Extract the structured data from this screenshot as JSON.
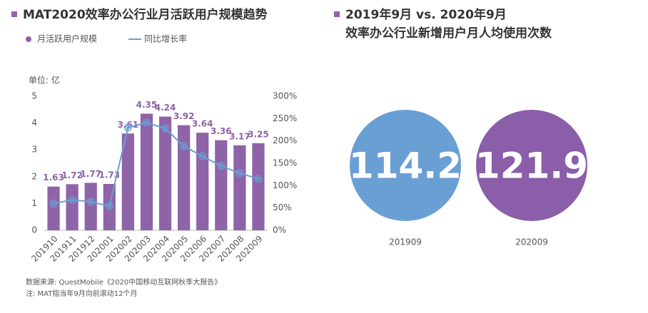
{
  "chart_data": [
    {
      "type": "bar-line",
      "title": "MAT2020效率办公行业月活跃用户规模趋势",
      "unit_label": "单位: 亿",
      "categories": [
        "201910",
        "201911",
        "201912",
        "202001",
        "202002",
        "202003",
        "202004",
        "202005",
        "202006",
        "202007",
        "202008",
        "202009"
      ],
      "series": [
        {
          "name": "月活跃用户规模",
          "type": "bar",
          "color": "#8e63a8",
          "values": [
            1.63,
            1.72,
            1.77,
            1.73,
            3.61,
            4.35,
            4.24,
            3.92,
            3.64,
            3.36,
            3.17,
            3.25
          ]
        },
        {
          "name": "同比增长率",
          "type": "line",
          "axis": "y2",
          "color": "#6b9fd4",
          "values": [
            60,
            68,
            64,
            54,
            230,
            241,
            228,
            188,
            166,
            144,
            128,
            115
          ]
        }
      ],
      "ylim": [
        0,
        5
      ],
      "yticks": [
        0,
        1,
        2,
        3,
        4,
        5
      ],
      "y2lim": [
        0,
        300
      ],
      "y2ticks": [
        {
          "value": 0,
          "label": "0%"
        },
        {
          "value": 50,
          "label": "50%"
        },
        {
          "value": 100,
          "label": "100%"
        },
        {
          "value": 150,
          "label": "150%"
        },
        {
          "value": 200,
          "label": "200%"
        },
        {
          "value": 250,
          "label": "250%"
        },
        {
          "value": 300,
          "label": "300%"
        }
      ],
      "notes": [
        "数据来源: QuestMobile《2020中国移动互联网秋季大报告》",
        "注: MAT指当年9月向前滚动12个月"
      ]
    },
    {
      "type": "circles",
      "title": "2019年9月 vs. 2020年9月",
      "subtitle": "效率办公行业新增用户月人均使用次数",
      "categories": [
        "201909",
        "202009"
      ],
      "values": [
        114.2,
        121.9
      ],
      "colors": [
        "#6a9fd4",
        "#8a5ea8"
      ]
    }
  ]
}
